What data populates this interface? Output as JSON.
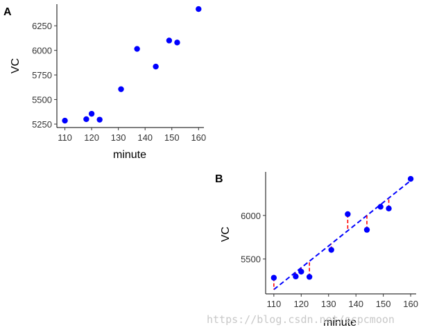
{
  "chart_data": [
    {
      "panel": "A",
      "type": "scatter",
      "xlabel": "minute",
      "ylabel": "VC",
      "xlim": [
        107,
        162
      ],
      "ylim": [
        5215,
        6470
      ],
      "xticks": [
        110,
        120,
        130,
        140,
        150,
        160
      ],
      "yticks": [
        5250,
        5500,
        5750,
        6000,
        6250
      ],
      "points": [
        {
          "x": 110,
          "y": 5285
        },
        {
          "x": 118,
          "y": 5300
        },
        {
          "x": 120,
          "y": 5355
        },
        {
          "x": 123,
          "y": 5295
        },
        {
          "x": 131,
          "y": 5605
        },
        {
          "x": 137,
          "y": 6015
        },
        {
          "x": 144,
          "y": 5835
        },
        {
          "x": 149,
          "y": 6100
        },
        {
          "x": 152,
          "y": 6080
        },
        {
          "x": 160,
          "y": 6420
        }
      ],
      "point_color": "#0000ff",
      "grid": false
    },
    {
      "panel": "B",
      "type": "scatter",
      "xlabel": "minute",
      "ylabel": "VC",
      "xlim": [
        107,
        162
      ],
      "ylim": [
        5100,
        6500
      ],
      "xticks": [
        110,
        120,
        130,
        140,
        150,
        160
      ],
      "yticks": [
        5500,
        6000
      ],
      "points": [
        {
          "x": 110,
          "y": 5285
        },
        {
          "x": 118,
          "y": 5300
        },
        {
          "x": 120,
          "y": 5355
        },
        {
          "x": 123,
          "y": 5295
        },
        {
          "x": 131,
          "y": 5605
        },
        {
          "x": 137,
          "y": 6015
        },
        {
          "x": 144,
          "y": 5835
        },
        {
          "x": 149,
          "y": 6100
        },
        {
          "x": 152,
          "y": 6080
        },
        {
          "x": 160,
          "y": 6420
        }
      ],
      "fit_line": {
        "x": [
          110,
          160
        ],
        "y": [
          5150,
          6400
        ],
        "style": "dashed",
        "color": "#0000ff"
      },
      "residuals": {
        "color": "#ff0000",
        "style": "dashed"
      },
      "point_color": "#0000ff",
      "grid": false
    }
  ],
  "watermark": "https://blog.csdn.net/scpcmoon"
}
